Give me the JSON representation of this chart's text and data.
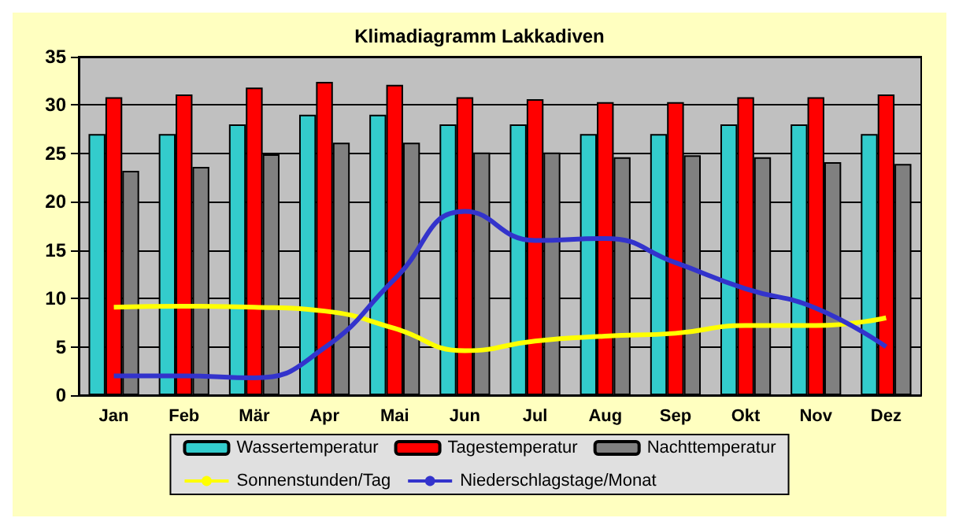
{
  "chart_data": {
    "type": "bar",
    "title": "Klimadiagramm Lakkadiven",
    "categories": [
      "Jan",
      "Feb",
      "Mär",
      "Apr",
      "Mai",
      "Jun",
      "Jul",
      "Aug",
      "Sep",
      "Okt",
      "Nov",
      "Dez"
    ],
    "series": [
      {
        "name": "Wassertemperatur",
        "color": "#33cccc",
        "values": [
          27,
          27,
          28,
          29,
          29,
          28,
          28,
          27,
          27,
          28,
          28,
          27
        ]
      },
      {
        "name": "Tagestemperatur",
        "color": "#ff0000",
        "values": [
          30.8,
          31.1,
          31.8,
          32.4,
          32.1,
          30.8,
          30.6,
          30.3,
          30.3,
          30.8,
          30.8,
          31.1
        ]
      },
      {
        "name": "Nachttemperatur",
        "color": "#808080",
        "values": [
          23.2,
          23.6,
          24.9,
          26.1,
          26.1,
          25.1,
          25.1,
          24.6,
          24.8,
          24.6,
          24.1,
          23.9
        ]
      },
      {
        "name": "Sonnenstunden/Tag",
        "type": "line",
        "color": "#ffff00",
        "values": [
          9.1,
          9.2,
          9.1,
          8.7,
          6.9,
          4.6,
          5.6,
          6.1,
          6.4,
          7.2,
          7.2,
          8.0
        ]
      },
      {
        "name": "Niederschlagstage/Monat",
        "type": "line",
        "color": "#3333cc",
        "values": [
          2,
          2,
          1.8,
          4.9,
          12,
          19,
          16,
          16.2,
          13.7,
          11,
          9,
          5
        ]
      }
    ],
    "ylim": [
      0,
      35
    ],
    "yticks": [
      0,
      5,
      10,
      15,
      20,
      25,
      30,
      35
    ],
    "grid": "y",
    "legend": "bottom",
    "marker": "none"
  }
}
